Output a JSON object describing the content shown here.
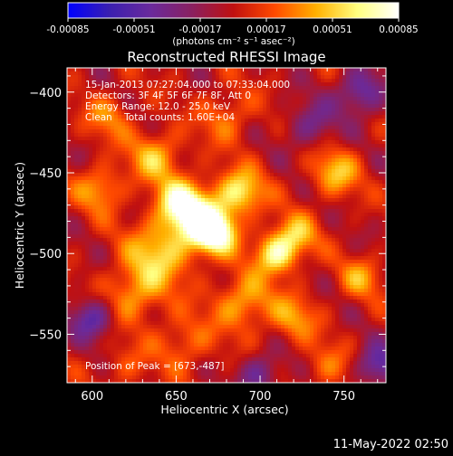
{
  "chart_data": {
    "type": "heatmap",
    "title": "Reconstructed RHESSI Image",
    "xlabel": "Heliocentric X (arcsec)",
    "ylabel": "Heliocentric Y (arcsec)",
    "xlim": [
      585,
      775
    ],
    "ylim": [
      -580,
      -385
    ],
    "xticks": [
      600,
      650,
      700,
      750
    ],
    "yticks": [
      -400,
      -450,
      -500,
      -550
    ],
    "colorbar": {
      "range": [
        -0.00085,
        0.00085
      ],
      "ticks": [
        "-0.00085",
        "-0.00051",
        "-0.00017",
        "0.00017",
        "0.00051",
        "0.00085"
      ],
      "units_label": "(photons cm⁻² s⁻¹ asec⁻²)",
      "colormap": [
        "#0000ff",
        "#3a1fb0",
        "#6a2a9c",
        "#8a2060",
        "#c01010",
        "#ff4a00",
        "#ffb000",
        "#ffff80",
        "#ffffff"
      ]
    },
    "info_lines": [
      "15-Jan-2013 07:27:04.000 to 07:33:04.000",
      "Detectors: 3F 4F 5F 6F 7F 8F, Att 0",
      "Energy Range: 12.0 - 25.0 keV",
      "Clean    Total counts: 1.60E+04"
    ],
    "peak_label": "Position of Peak = [673,-487]",
    "peak": [
      673,
      -487
    ],
    "sources": [
      {
        "x": 673,
        "y": -487,
        "amp": 0.00085,
        "sigma": 9
      },
      {
        "x": 662,
        "y": -478,
        "amp": 0.00065,
        "sigma": 12
      },
      {
        "x": 688,
        "y": -462,
        "amp": 0.0006,
        "sigma": 10
      },
      {
        "x": 652,
        "y": -468,
        "amp": 0.00055,
        "sigma": 10
      },
      {
        "x": 638,
        "y": -440,
        "amp": 0.00045,
        "sigma": 11
      },
      {
        "x": 710,
        "y": -500,
        "amp": 0.0007,
        "sigma": 9
      },
      {
        "x": 722,
        "y": -488,
        "amp": 0.0004,
        "sigma": 9
      },
      {
        "x": 745,
        "y": -450,
        "amp": 0.00045,
        "sigma": 10
      },
      {
        "x": 640,
        "y": -500,
        "amp": 0.0005,
        "sigma": 14
      },
      {
        "x": 625,
        "y": -525,
        "amp": 0.0004,
        "sigma": 12
      },
      {
        "x": 690,
        "y": -530,
        "amp": 0.00045,
        "sigma": 12
      },
      {
        "x": 720,
        "y": -540,
        "amp": 0.00035,
        "sigma": 10
      },
      {
        "x": 760,
        "y": -515,
        "amp": 0.00035,
        "sigma": 9
      },
      {
        "x": 655,
        "y": -555,
        "amp": 0.0003,
        "sigma": 12
      },
      {
        "x": 605,
        "y": -460,
        "amp": 0.0004,
        "sigma": 10
      },
      {
        "x": 610,
        "y": -415,
        "amp": 0.0003,
        "sigma": 10
      },
      {
        "x": 680,
        "y": -415,
        "amp": 0.0003,
        "sigma": 11
      },
      {
        "x": 740,
        "y": -570,
        "amp": 0.00025,
        "sigma": 10
      },
      {
        "x": 620,
        "y": -570,
        "amp": 0.0002,
        "sigma": 10
      },
      {
        "x": 760,
        "y": -400,
        "amp": -0.0005,
        "sigma": 10
      },
      {
        "x": 770,
        "y": -570,
        "amp": -0.0005,
        "sigma": 9
      },
      {
        "x": 600,
        "y": -540,
        "amp": -0.0005,
        "sigma": 9
      },
      {
        "x": 730,
        "y": -420,
        "amp": -0.00035,
        "sigma": 10
      },
      {
        "x": 700,
        "y": -575,
        "amp": -0.0004,
        "sigma": 9
      }
    ]
  },
  "footer": {
    "timestamp": "11-May-2022 02:50"
  }
}
